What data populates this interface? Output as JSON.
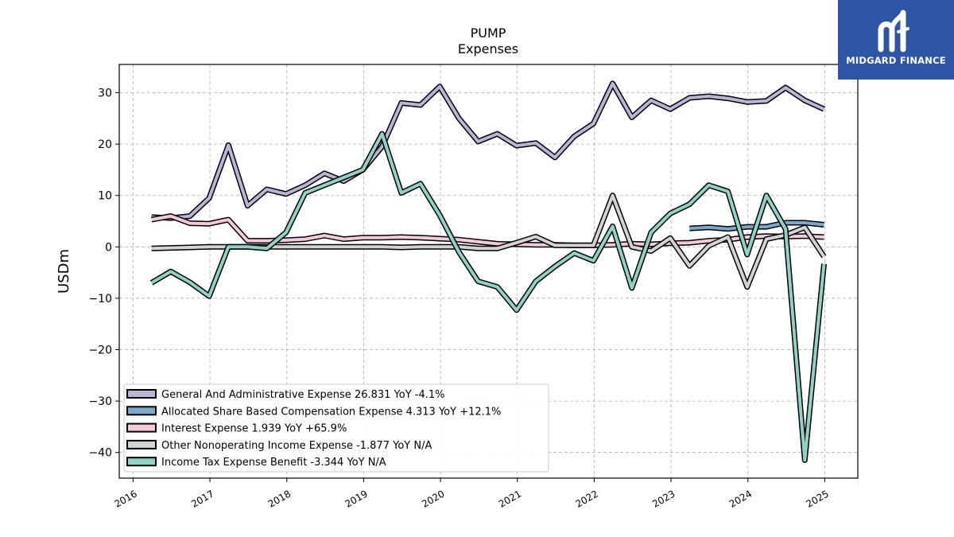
{
  "logo": {
    "text": "MIDGARD FINANCE"
  },
  "chart_data": {
    "type": "line",
    "title": "PUMP",
    "subtitle": "Expenses",
    "ylabel": "USDm",
    "xlabel": "",
    "ylim": [
      -45,
      35.5
    ],
    "xlim": [
      2015.82,
      2025.43
    ],
    "yticks": [
      30,
      20,
      10,
      0,
      -10,
      -20,
      -30,
      -40
    ],
    "ytick_labels": [
      "30",
      "20",
      "10",
      "0",
      "−10",
      "−20",
      "−30",
      "−40"
    ],
    "xticks": [
      2016,
      2017,
      2018,
      2019,
      2020,
      2021,
      2022,
      2023,
      2024,
      2025
    ],
    "xtick_labels": [
      "2016",
      "2017",
      "2018",
      "2019",
      "2020",
      "2021",
      "2022",
      "2023",
      "2024",
      "2025"
    ],
    "grid": true,
    "legend_position": "lower-left",
    "series": [
      {
        "name": "General And Administrative Expense  26.831 YoY -4.1%",
        "color": "#b9b4d8",
        "x": [
          2016.24,
          2016.49,
          2016.74,
          2016.99,
          2017.24,
          2017.49,
          2017.74,
          2017.99,
          2018.24,
          2018.49,
          2018.74,
          2018.99,
          2019.24,
          2019.49,
          2019.74,
          2019.99,
          2020.24,
          2020.49,
          2020.74,
          2020.99,
          2021.24,
          2021.49,
          2021.74,
          2021.99,
          2022.24,
          2022.49,
          2022.74,
          2022.99,
          2023.24,
          2023.49,
          2023.74,
          2023.99,
          2024.24,
          2024.49,
          2024.74,
          2024.99
        ],
        "y": [
          5.8,
          5.6,
          6.0,
          9.5,
          19.8,
          8.0,
          11.2,
          10.3,
          12.0,
          14.3,
          12.8,
          15.0,
          19.5,
          28.0,
          27.6,
          31.2,
          25.0,
          20.5,
          22.0,
          19.7,
          20.2,
          17.4,
          21.5,
          24.0,
          31.8,
          25.2,
          28.5,
          26.8,
          29.0,
          29.3,
          28.9,
          28.2,
          28.4,
          31.0,
          28.5,
          26.8
        ]
      },
      {
        "name": "Allocated Share Based Compensation Expense  4.313 YoY +12.1%",
        "color": "#7aa9cf",
        "x": [
          2023.24,
          2023.49,
          2023.74,
          2023.99,
          2024.24,
          2024.49,
          2024.74,
          2024.99
        ],
        "y": [
          3.6,
          3.8,
          3.5,
          3.9,
          3.9,
          4.7,
          4.7,
          4.3
        ]
      },
      {
        "name": "Interest Expense  1.939 YoY +65.9%",
        "color": "#f6c8dc",
        "x": [
          2016.24,
          2016.49,
          2016.74,
          2016.99,
          2017.24,
          2017.49,
          2017.74,
          2017.99,
          2018.24,
          2018.49,
          2018.74,
          2018.99,
          2019.24,
          2019.49,
          2019.74,
          2019.99,
          2020.24,
          2020.49,
          2020.74,
          2020.99,
          2021.24,
          2021.49,
          2021.74,
          2021.99,
          2022.24,
          2022.49,
          2022.74,
          2022.99,
          2023.24,
          2023.49,
          2023.74,
          2023.99,
          2024.24,
          2024.49,
          2024.74,
          2024.99
        ],
        "y": [
          5.3,
          6.0,
          4.6,
          4.5,
          5.3,
          1.2,
          1.2,
          1.3,
          1.5,
          2.2,
          1.5,
          1.8,
          1.8,
          1.9,
          1.8,
          1.6,
          1.4,
          1.0,
          0.6,
          0.5,
          0.4,
          0.4,
          0.3,
          0.3,
          0.4,
          0.6,
          0.5,
          0.7,
          0.8,
          1.2,
          1.4,
          1.9,
          2.1,
          2.0,
          2.1,
          1.9
        ]
      },
      {
        "name": "Other Nonoperating Income Expense  -1.877 YoY N/A",
        "color": "#d3d3d3",
        "x": [
          2016.24,
          2016.49,
          2016.74,
          2016.99,
          2017.24,
          2017.49,
          2017.74,
          2017.99,
          2018.24,
          2018.49,
          2018.74,
          2018.99,
          2019.24,
          2019.49,
          2019.74,
          2019.99,
          2020.24,
          2020.49,
          2020.74,
          2020.99,
          2021.24,
          2021.49,
          2021.74,
          2021.99,
          2022.24,
          2022.49,
          2022.74,
          2022.99,
          2023.24,
          2023.49,
          2023.74,
          2023.99,
          2024.24,
          2024.49,
          2024.74,
          2024.99
        ],
        "y": [
          -0.3,
          -0.2,
          -0.1,
          0.0,
          0.0,
          0.0,
          0.0,
          0.0,
          0.0,
          0.0,
          0.0,
          0.0,
          0.0,
          -0.1,
          0.0,
          0.0,
          0.0,
          -0.3,
          -0.3,
          0.8,
          2.0,
          0.3,
          0.3,
          0.3,
          10.0,
          0.0,
          -0.8,
          1.7,
          -3.7,
          0.2,
          1.9,
          -7.8,
          1.5,
          2.3,
          3.8,
          -1.9
        ]
      },
      {
        "name": "Income Tax Expense Benefit  -3.344 YoY N/A",
        "color": "#8fd3c6",
        "x": [
          2016.24,
          2016.49,
          2016.74,
          2016.99,
          2017.24,
          2017.49,
          2017.74,
          2017.99,
          2018.24,
          2018.49,
          2018.74,
          2018.99,
          2019.24,
          2019.49,
          2019.74,
          2019.99,
          2020.24,
          2020.49,
          2020.74,
          2020.99,
          2021.24,
          2021.49,
          2021.74,
          2021.99,
          2022.24,
          2022.49,
          2022.74,
          2022.99,
          2023.24,
          2023.49,
          2023.74,
          2023.99,
          2024.24,
          2024.49,
          2024.74,
          2024.99
        ],
        "y": [
          -7.0,
          -4.8,
          -6.9,
          -9.6,
          0.0,
          0.0,
          -0.3,
          2.8,
          10.5,
          12.0,
          13.5,
          15.0,
          22.0,
          10.5,
          12.3,
          6.2,
          -1.0,
          -6.7,
          -7.8,
          -12.3,
          -6.7,
          -3.8,
          -1.2,
          -2.7,
          4.0,
          -8.0,
          2.8,
          6.5,
          8.3,
          12.0,
          10.8,
          -1.5,
          10.0,
          3.5,
          -41.5,
          -3.3
        ]
      }
    ]
  }
}
